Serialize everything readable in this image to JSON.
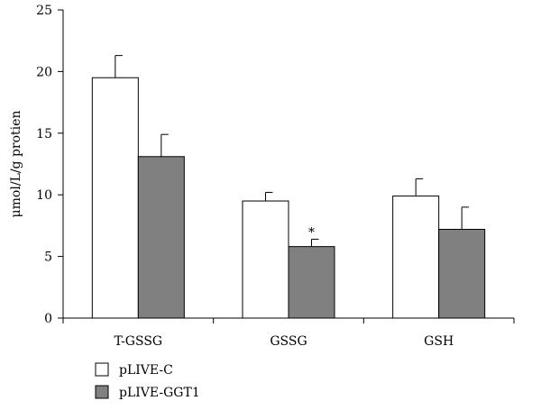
{
  "chart_data": {
    "type": "bar",
    "categories": [
      "T-GSSG",
      "GSSG",
      "GSH"
    ],
    "series": [
      {
        "name": "pLIVE-C",
        "values": [
          19.5,
          9.5,
          9.9
        ],
        "errors": [
          1.8,
          0.7,
          1.4
        ],
        "color": "#ffffff"
      },
      {
        "name": "pLIVE-GGT1",
        "values": [
          13.1,
          5.8,
          7.2
        ],
        "errors": [
          1.8,
          0.6,
          1.8
        ],
        "color": "#808080"
      }
    ],
    "ylabel": "μmol/L/g protien",
    "ylim": [
      0,
      25
    ],
    "yticks": [
      0,
      5,
      10,
      15,
      20,
      25
    ],
    "annotations": [
      {
        "category": "GSSG",
        "series": "pLIVE-GGT1",
        "text": "*"
      }
    ],
    "legend_position": "bottom-left",
    "grid": false
  }
}
